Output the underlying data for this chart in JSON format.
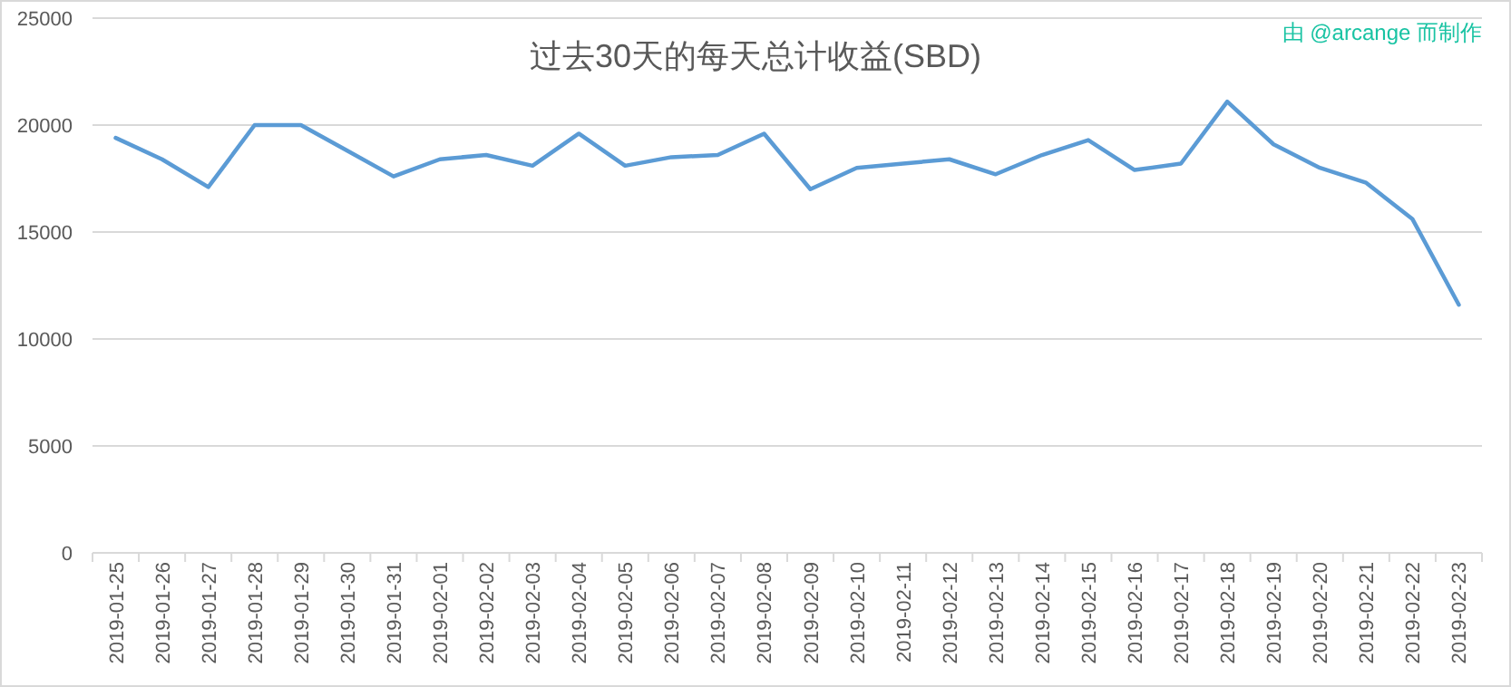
{
  "chart_data": {
    "type": "line",
    "title": "过去30天的每天总计收益(SBD)",
    "annotations": [
      "由 @arcange 而制作"
    ],
    "categories": [
      "2019-01-25",
      "2019-01-26",
      "2019-01-27",
      "2019-01-28",
      "2019-01-29",
      "2019-01-30",
      "2019-01-31",
      "2019-02-01",
      "2019-02-02",
      "2019-02-03",
      "2019-02-04",
      "2019-02-05",
      "2019-02-06",
      "2019-02-07",
      "2019-02-08",
      "2019-02-09",
      "2019-02-10",
      "2019-02-11",
      "2019-02-12",
      "2019-02-13",
      "2019-02-14",
      "2019-02-15",
      "2019-02-16",
      "2019-02-17",
      "2019-02-18",
      "2019-02-19",
      "2019-02-20",
      "2019-02-21",
      "2019-02-22",
      "2019-02-23"
    ],
    "series": [
      {
        "color": "#5b9bd5",
        "values": [
          19400,
          18400,
          17100,
          20000,
          20000,
          18800,
          17600,
          18400,
          18600,
          18100,
          19600,
          18100,
          18500,
          18600,
          19600,
          17000,
          18000,
          18200,
          18400,
          17700,
          18600,
          19300,
          17900,
          18200,
          21100,
          19100,
          18000,
          17300,
          15600,
          11600
        ]
      }
    ],
    "ylim": [
      0,
      25000
    ],
    "yticks": [
      0,
      5000,
      10000,
      15000,
      20000,
      25000
    ],
    "grid": "y",
    "marker": "none",
    "line_style": "solid"
  }
}
